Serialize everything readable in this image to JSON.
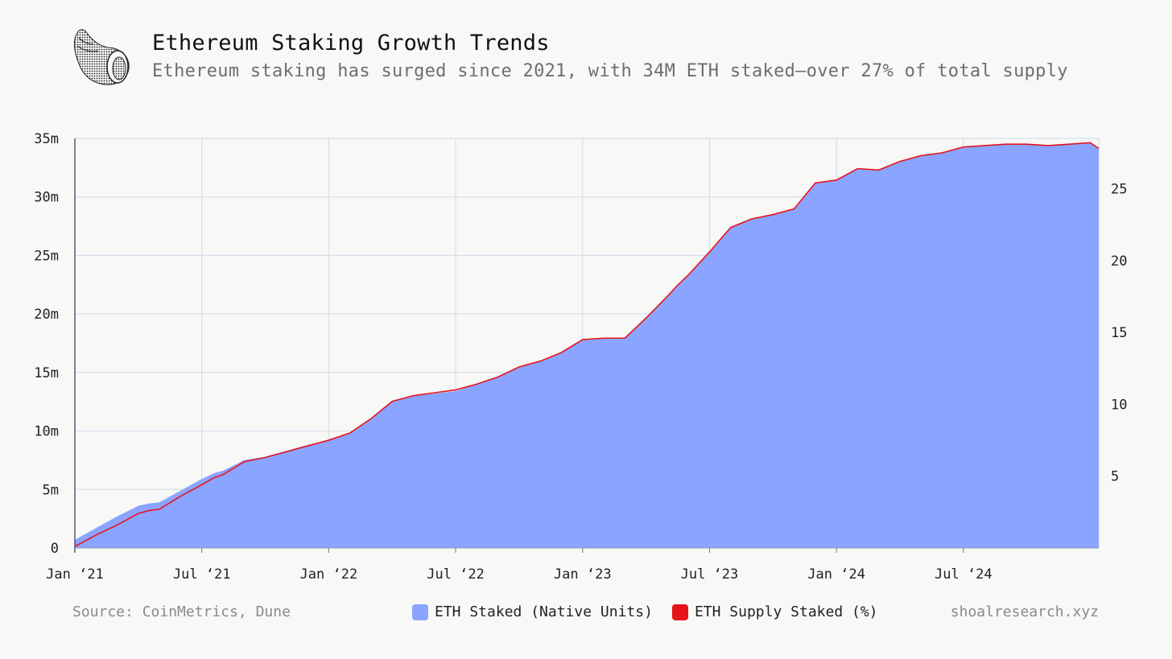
{
  "header": {
    "title": "Ethereum Staking Growth Trends",
    "subtitle": "Ethereum staking has surged since 2021, with 34M ETH staked—over 27% of total supply"
  },
  "footer": {
    "source": "Source: CoinMetrics, Dune",
    "brand": "shoalresearch.xyz"
  },
  "colors": {
    "area": "#8aa4ff",
    "line": "#e8141c",
    "grid": "#cfdbe8",
    "axis": "#555577"
  },
  "chart_data": {
    "type": "area",
    "title": "Ethereum Staking Growth Trends",
    "x_unit": "months since Jan 2021",
    "x_ticks": [
      {
        "x": 0,
        "label": "Jan ‘21"
      },
      {
        "x": 6,
        "label": "Jul ‘21"
      },
      {
        "x": 12,
        "label": "Jan ‘22"
      },
      {
        "x": 18,
        "label": "Jul ‘22"
      },
      {
        "x": 24,
        "label": "Jan ‘23"
      },
      {
        "x": 30,
        "label": "Jul ‘23"
      },
      {
        "x": 36,
        "label": "Jan ‘24"
      },
      {
        "x": 42,
        "label": "Jul ‘24"
      }
    ],
    "x_range": [
      0,
      48.4
    ],
    "y_left": {
      "min": 0,
      "max": 35,
      "ticks": [
        0,
        5,
        10,
        15,
        20,
        25,
        30,
        35
      ],
      "tick_labels": [
        "0",
        "5m",
        "10m",
        "15m",
        "20m",
        "25m",
        "30m",
        "35m"
      ],
      "unit": "million ETH"
    },
    "y_right": {
      "min": 0,
      "max": 28.5,
      "ticks": [
        5,
        10,
        15,
        20,
        25
      ],
      "tick_labels": [
        "5",
        "10",
        "15",
        "20",
        "25"
      ],
      "unit": "%"
    },
    "series": [
      {
        "name": "ETH Staked (Native Units)",
        "axis": "left",
        "color": "#8aa4ff",
        "x": [
          0,
          1,
          2,
          3,
          3.5,
          4,
          5,
          6,
          6.6,
          7,
          8,
          9,
          10,
          11,
          12,
          13,
          14,
          15,
          16,
          17,
          18,
          19,
          20,
          21,
          22,
          23,
          24,
          25,
          26,
          27,
          28,
          28.5,
          29,
          30,
          31,
          32,
          33,
          34,
          35,
          36,
          37,
          38,
          39,
          40,
          41,
          42,
          43,
          44,
          45,
          46,
          47,
          48,
          48.4
        ],
        "values": [
          0.7,
          1.7,
          2.7,
          3.6,
          3.8,
          3.9,
          4.9,
          5.9,
          6.4,
          6.6,
          7.5,
          7.8,
          8.3,
          8.8,
          9.2,
          9.8,
          11.1,
          12.6,
          13.0,
          13.2,
          13.4,
          14.0,
          14.6,
          15.5,
          16.0,
          16.7,
          17.8,
          17.9,
          18.0,
          19.6,
          21.5,
          22.4,
          23.3,
          25.3,
          27.4,
          28.1,
          28.5,
          29.0,
          31.2,
          31.4,
          32.4,
          32.3,
          33.0,
          33.5,
          33.8,
          34.2,
          34.4,
          34.5,
          34.5,
          34.4,
          34.5,
          34.6,
          34.2
        ]
      },
      {
        "name": "ETH Supply Staked (%)",
        "axis": "right",
        "color": "#e8141c",
        "x": [
          0,
          1,
          2,
          3,
          3.5,
          4,
          5,
          6,
          6.6,
          7,
          8,
          9,
          10,
          11,
          12,
          13,
          14,
          15,
          16,
          17,
          18,
          19,
          20,
          21,
          22,
          23,
          24,
          25,
          26,
          27,
          28,
          28.5,
          29,
          30,
          31,
          32,
          33,
          34,
          35,
          36,
          37,
          38,
          39,
          40,
          41,
          42,
          43,
          44,
          45,
          46,
          47,
          48,
          48.4
        ],
        "values": [
          0.1,
          0.9,
          1.6,
          2.4,
          2.6,
          2.7,
          3.6,
          4.4,
          4.9,
          5.1,
          6.0,
          6.3,
          6.7,
          7.1,
          7.5,
          8.0,
          9.0,
          10.2,
          10.6,
          10.8,
          11.0,
          11.4,
          11.9,
          12.6,
          13.0,
          13.6,
          14.5,
          14.6,
          14.6,
          16.0,
          17.5,
          18.3,
          19.0,
          20.6,
          22.3,
          22.9,
          23.2,
          23.6,
          25.4,
          25.6,
          26.4,
          26.3,
          26.9,
          27.3,
          27.5,
          27.9,
          28.0,
          28.1,
          28.1,
          28.0,
          28.1,
          28.2,
          27.8
        ]
      }
    ]
  }
}
